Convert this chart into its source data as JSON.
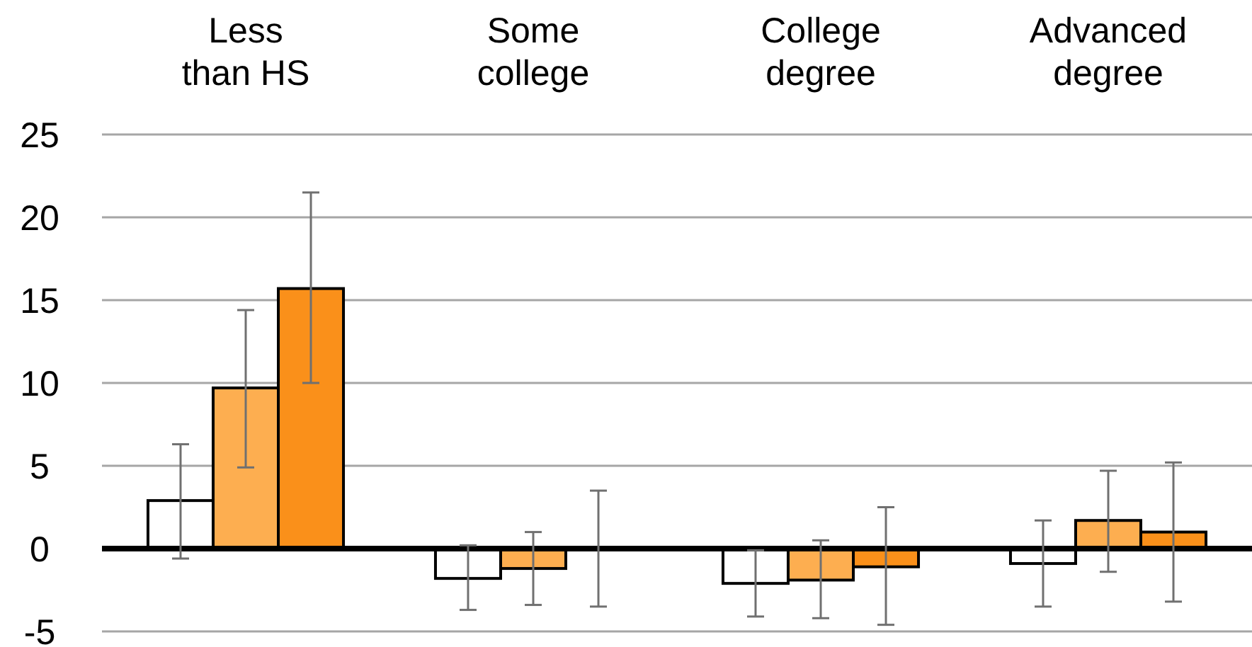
{
  "chart_data": {
    "type": "bar",
    "categories": [
      "Less than HS",
      "Some college",
      "College degree",
      "Advanced degree"
    ],
    "series": [
      {
        "color": "#ffffff",
        "values": [
          2.9,
          -1.8,
          -2.1,
          -0.9
        ],
        "errors": [
          [
            -0.6,
            6.3
          ],
          [
            -3.7,
            0.2
          ],
          [
            -4.1,
            -0.1
          ],
          [
            -3.5,
            1.7
          ]
        ]
      },
      {
        "color": "#fdae50",
        "values": [
          9.7,
          -1.2,
          -1.9,
          1.7
        ],
        "errors": [
          [
            4.9,
            14.4
          ],
          [
            -3.4,
            1.0
          ],
          [
            -4.2,
            0.5
          ],
          [
            -1.4,
            4.7
          ]
        ]
      },
      {
        "color": "#fa901a",
        "values": [
          15.7,
          0,
          -1.1,
          1.0
        ],
        "errors": [
          [
            10.0,
            21.5
          ],
          [
            -3.5,
            3.5
          ],
          [
            -4.6,
            2.5
          ],
          [
            -3.2,
            5.2
          ]
        ]
      }
    ],
    "ylim": [
      -5,
      25
    ],
    "yticks": [
      -5,
      0,
      5,
      10,
      15,
      20,
      25
    ],
    "grid": "y"
  }
}
